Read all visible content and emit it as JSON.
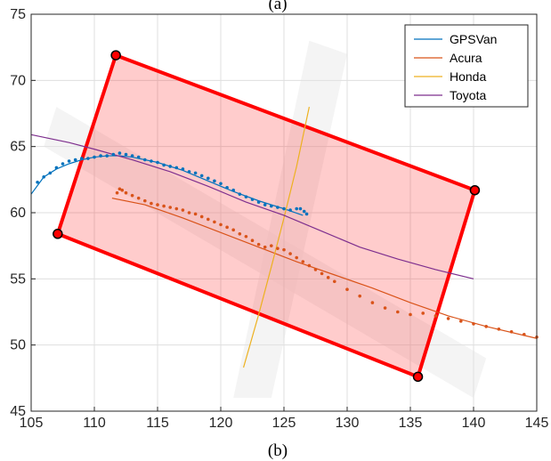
{
  "captions": {
    "top": "(a)",
    "bottom": "(b)"
  },
  "chart_data": {
    "type": "line",
    "xlim": [
      105,
      145
    ],
    "ylim": [
      45,
      75
    ],
    "x_ticks": [
      105,
      110,
      115,
      120,
      125,
      130,
      135,
      140,
      145
    ],
    "y_ticks": [
      45,
      50,
      55,
      60,
      65,
      70,
      75
    ],
    "grid": true,
    "legend_position": "top-right",
    "series": [
      {
        "name": "GPSVan",
        "color": "#0072BD",
        "x": [
          105,
          106,
          107,
          108,
          109,
          110,
          111,
          112,
          113,
          115,
          117,
          119,
          121,
          123,
          125,
          126.5
        ],
        "y": [
          61.4,
          62.7,
          63.3,
          63.7,
          64.0,
          64.2,
          64.3,
          64.3,
          64.2,
          63.8,
          63.2,
          62.4,
          61.6,
          60.9,
          60.3,
          59.8
        ]
      },
      {
        "name": "Acura",
        "color": "#D95319",
        "x": [
          111.4,
          114,
          117,
          120,
          123,
          126,
          129,
          132,
          135,
          138,
          141,
          145
        ],
        "y": [
          61.1,
          60.6,
          59.6,
          58.5,
          57.4,
          56.3,
          55.3,
          54.3,
          53.2,
          52.2,
          51.4,
          50.5
        ]
      },
      {
        "name": "Honda",
        "color": "#EDB120",
        "x": [
          121.8,
          123,
          124,
          125,
          126,
          127
        ],
        "y": [
          48.3,
          52.3,
          55.9,
          59.6,
          63.5,
          68.0
        ]
      },
      {
        "name": "Toyota",
        "color": "#7E2F8E",
        "x": [
          105,
          108,
          110,
          113,
          116,
          119,
          122,
          125,
          128,
          131,
          134,
          137,
          140
        ],
        "y": [
          65.9,
          65.3,
          64.8,
          64.0,
          63.1,
          62.0,
          60.8,
          59.8,
          58.6,
          57.4,
          56.5,
          55.7,
          55.0
        ]
      }
    ],
    "scatter_series": [
      {
        "color": "#0072BD",
        "x": [
          105.5,
          106,
          106.5,
          107,
          107.5,
          108,
          108.5,
          109,
          109.5,
          110,
          110.5,
          111,
          111.5,
          112,
          112.5,
          113,
          113.5,
          114,
          114.5,
          115,
          115.5,
          116,
          116.5,
          117,
          117.5,
          118,
          118.5,
          119,
          119.5,
          120,
          120.5,
          121,
          121.5,
          122,
          122.5,
          123,
          123.5,
          124,
          124.5,
          125,
          125.5,
          126,
          126.3,
          126.6,
          126.8
        ],
        "y": [
          62.3,
          62.7,
          63.0,
          63.4,
          63.7,
          63.9,
          64.0,
          64.1,
          64.1,
          64.2,
          64.3,
          64.3,
          64.4,
          64.5,
          64.4,
          64.3,
          64.2,
          64.0,
          63.9,
          63.8,
          63.6,
          63.5,
          63.4,
          63.3,
          63.1,
          63.0,
          62.8,
          62.6,
          62.4,
          62.2,
          61.9,
          61.7,
          61.4,
          61.2,
          61.0,
          60.8,
          60.6,
          60.5,
          60.4,
          60.3,
          60.2,
          60.3,
          60.3,
          60.1,
          59.9
        ]
      },
      {
        "color": "#D95319",
        "x": [
          111.8,
          112,
          112.2,
          112.5,
          113,
          113.5,
          114,
          114.5,
          115,
          115.5,
          116,
          116.5,
          117,
          117.5,
          118,
          118.5,
          119,
          119.5,
          120,
          120.5,
          121,
          121.5,
          122,
          122.5,
          123,
          123.5,
          124,
          124.5,
          125,
          125.5,
          126,
          126.5,
          127,
          127.5,
          128,
          128.5,
          129,
          130,
          131,
          132,
          133,
          134,
          135,
          136,
          137,
          138,
          139,
          140,
          141,
          142,
          143,
          144,
          145
        ],
        "y": [
          61.5,
          61.8,
          61.7,
          61.5,
          61.3,
          61.1,
          60.9,
          60.7,
          60.6,
          60.5,
          60.4,
          60.3,
          60.2,
          60.0,
          59.9,
          59.7,
          59.5,
          59.3,
          59.1,
          58.9,
          58.7,
          58.4,
          58.2,
          57.9,
          57.6,
          57.4,
          57.5,
          57.3,
          57.2,
          56.9,
          56.6,
          56.3,
          56.0,
          55.7,
          55.4,
          55.1,
          54.8,
          54.2,
          53.7,
          53.2,
          52.8,
          52.5,
          52.3,
          52.4,
          52.2,
          52.0,
          51.8,
          51.6,
          51.4,
          51.2,
          51.0,
          50.8,
          50.6
        ]
      }
    ],
    "rectangle": {
      "corners": [
        [
          111.7,
          71.9
        ],
        [
          140.1,
          61.7
        ],
        [
          135.6,
          47.6
        ],
        [
          107.1,
          58.4
        ]
      ],
      "fill": "#FF0000",
      "fill_opacity": 0.2,
      "stroke": "#FF0000"
    }
  }
}
